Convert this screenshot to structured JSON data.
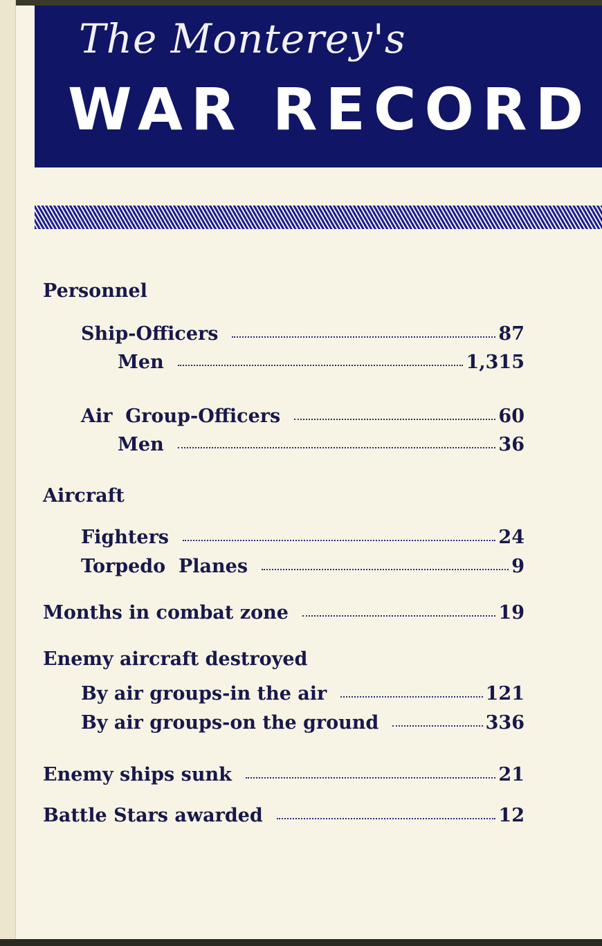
{
  "header": {
    "script_title": "The Monterey's",
    "main_title": "WAR RECORD"
  },
  "sections": {
    "personnel": "Personnel",
    "aircraft": "Aircraft",
    "enemy_aircraft": "Enemy aircraft destroyed"
  },
  "rows": [
    {
      "label": "Ship-Officers",
      "value": "87"
    },
    {
      "label": "Men",
      "value": "1,315"
    },
    {
      "label": "Air  Group-Officers",
      "value": "60"
    },
    {
      "label": "Men",
      "value": "36"
    },
    {
      "label": "Fighters",
      "value": "24"
    },
    {
      "label": "Torpedo  Planes",
      "value": "9"
    },
    {
      "label": "Months in combat zone",
      "value": "19"
    },
    {
      "label": "By air groups-in the air",
      "value": "121"
    },
    {
      "label": "By air groups-on the ground",
      "value": "336"
    },
    {
      "label": "Enemy ships sunk",
      "value": "21"
    },
    {
      "label": "Battle Stars awarded",
      "value": "12"
    }
  ]
}
